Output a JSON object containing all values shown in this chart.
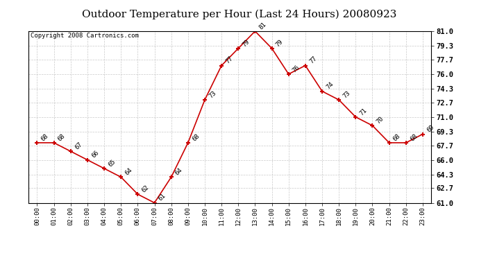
{
  "title": "Outdoor Temperature per Hour (Last 24 Hours) 20080923",
  "copyright": "Copyright 2008 Cartronics.com",
  "hours": [
    "00:00",
    "01:00",
    "02:00",
    "03:00",
    "04:00",
    "05:00",
    "06:00",
    "07:00",
    "08:00",
    "09:00",
    "10:00",
    "11:00",
    "12:00",
    "13:00",
    "14:00",
    "15:00",
    "16:00",
    "17:00",
    "18:00",
    "19:00",
    "20:00",
    "21:00",
    "22:00",
    "23:00"
  ],
  "temps": [
    68,
    68,
    67,
    66,
    65,
    64,
    62,
    61,
    64,
    68,
    73,
    77,
    79,
    81,
    79,
    76,
    77,
    74,
    73,
    71,
    70,
    68,
    68,
    69
  ],
  "line_color": "#cc0000",
  "marker": "+",
  "bg_color": "#ffffff",
  "grid_color": "#bbbbbb",
  "ylim_min": 61.0,
  "ylim_max": 81.0,
  "yticks": [
    61.0,
    62.7,
    64.3,
    66.0,
    67.7,
    69.3,
    71.0,
    72.7,
    74.3,
    76.0,
    77.7,
    79.3,
    81.0
  ],
  "title_fontsize": 11,
  "label_fontsize": 6.5,
  "tick_fontsize": 6.5,
  "copyright_fontsize": 6.5,
  "ytick_fontsize": 7.5
}
